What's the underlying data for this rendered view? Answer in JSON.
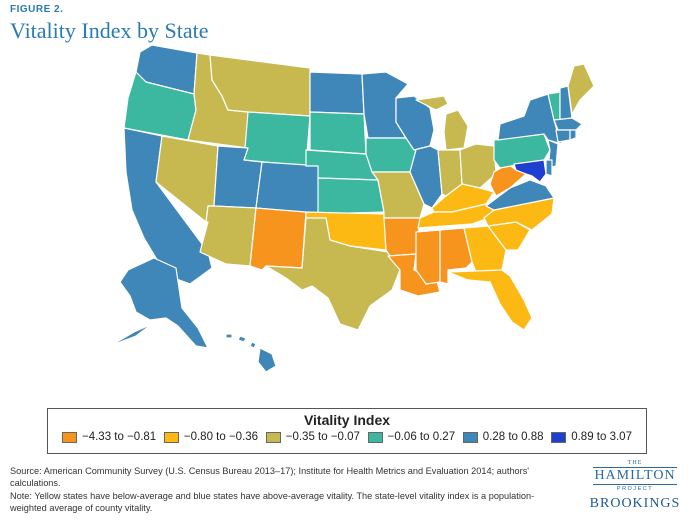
{
  "figure_label": "FIGURE 2.",
  "title": "Vitality Index by State",
  "legend": {
    "title": "Vitality Index",
    "items": [
      {
        "label": "−4.33 to −0.81",
        "color": "#f7941d"
      },
      {
        "label": "−0.80 to −0.36",
        "color": "#fdb913"
      },
      {
        "label": "−0.35 to −0.07",
        "color": "#c8b850"
      },
      {
        "label": "−0.06 to 0.27",
        "color": "#3cb8a0"
      },
      {
        "label": "0.28 to 0.88",
        "color": "#3f87b8"
      },
      {
        "label": "0.89 to 3.07",
        "color": "#1f3fd0"
      }
    ]
  },
  "map_data": {
    "states": [
      {
        "code": "WA",
        "category": 4
      },
      {
        "code": "OR",
        "category": 3
      },
      {
        "code": "CA",
        "category": 4
      },
      {
        "code": "ID",
        "category": 2
      },
      {
        "code": "NV",
        "category": 2
      },
      {
        "code": "MT",
        "category": 2
      },
      {
        "code": "WY",
        "category": 3
      },
      {
        "code": "UT",
        "category": 4
      },
      {
        "code": "AZ",
        "category": 2
      },
      {
        "code": "CO",
        "category": 4
      },
      {
        "code": "NM",
        "category": 0
      },
      {
        "code": "ND",
        "category": 4
      },
      {
        "code": "SD",
        "category": 3
      },
      {
        "code": "NE",
        "category": 3
      },
      {
        "code": "KS",
        "category": 3
      },
      {
        "code": "OK",
        "category": 1
      },
      {
        "code": "TX",
        "category": 2
      },
      {
        "code": "MN",
        "category": 4
      },
      {
        "code": "IA",
        "category": 3
      },
      {
        "code": "MO",
        "category": 2
      },
      {
        "code": "AR",
        "category": 0
      },
      {
        "code": "LA",
        "category": 0
      },
      {
        "code": "WI",
        "category": 4
      },
      {
        "code": "IL",
        "category": 4
      },
      {
        "code": "MI",
        "category": 2
      },
      {
        "code": "IN",
        "category": 2
      },
      {
        "code": "OH",
        "category": 2
      },
      {
        "code": "KY",
        "category": 1
      },
      {
        "code": "TN",
        "category": 1
      },
      {
        "code": "MS",
        "category": 0
      },
      {
        "code": "AL",
        "category": 0
      },
      {
        "code": "GA",
        "category": 1
      },
      {
        "code": "FL",
        "category": 1
      },
      {
        "code": "SC",
        "category": 1
      },
      {
        "code": "NC",
        "category": 1
      },
      {
        "code": "VA",
        "category": 4
      },
      {
        "code": "WV",
        "category": 0
      },
      {
        "code": "PA",
        "category": 3
      },
      {
        "code": "NY",
        "category": 4
      },
      {
        "code": "NJ",
        "category": 4
      },
      {
        "code": "MD",
        "category": 5
      },
      {
        "code": "DE",
        "category": 4
      },
      {
        "code": "VT",
        "category": 3
      },
      {
        "code": "NH",
        "category": 4
      },
      {
        "code": "ME",
        "category": 2
      },
      {
        "code": "MA",
        "category": 4
      },
      {
        "code": "CT",
        "category": 4
      },
      {
        "code": "RI",
        "category": 4
      },
      {
        "code": "AK",
        "category": 4
      },
      {
        "code": "HI",
        "category": 4
      }
    ]
  },
  "notes": {
    "source": "Source: American Community Survey (U.S. Census Bureau 2013–17); Institute for Health Metrics and Evaluation 2014; authors' calculations.",
    "note": "Note: Yellow states have below-average and blue states have above-average vitality. The state-level vitality index is a population-weighted average of county vitality."
  },
  "brand": {
    "the": "THE",
    "hamilton": "HAMILTON",
    "project": "PROJECT",
    "brookings": "BROOKINGS"
  }
}
